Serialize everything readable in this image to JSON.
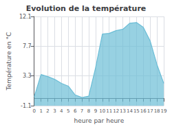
{
  "chart_data": {
    "type": "area",
    "title": "Evolution de la température",
    "xlabel": "heure par heure",
    "ylabel": "Température en °C",
    "x": [
      0,
      1,
      2,
      3,
      4,
      5,
      6,
      7,
      8,
      9,
      10,
      11,
      12,
      13,
      14,
      15,
      16,
      17,
      18,
      19
    ],
    "values": [
      0.2,
      3.5,
      3.2,
      2.8,
      2.2,
      1.8,
      0.5,
      0.1,
      0.3,
      4.5,
      9.5,
      9.6,
      10.0,
      10.2,
      11.1,
      11.2,
      10.5,
      8.5,
      5.0,
      2.2
    ],
    "color": "#6bbdd6",
    "xlim": [
      0,
      19
    ],
    "ylim": [
      -1.1,
      12.1
    ],
    "xticks": [
      0,
      1,
      2,
      3,
      4,
      5,
      6,
      7,
      8,
      9,
      10,
      11,
      12,
      13,
      14,
      15,
      16,
      17,
      18,
      19
    ],
    "yticks": [
      -1.1,
      3.3,
      7.7,
      12.1
    ],
    "grid": true
  }
}
